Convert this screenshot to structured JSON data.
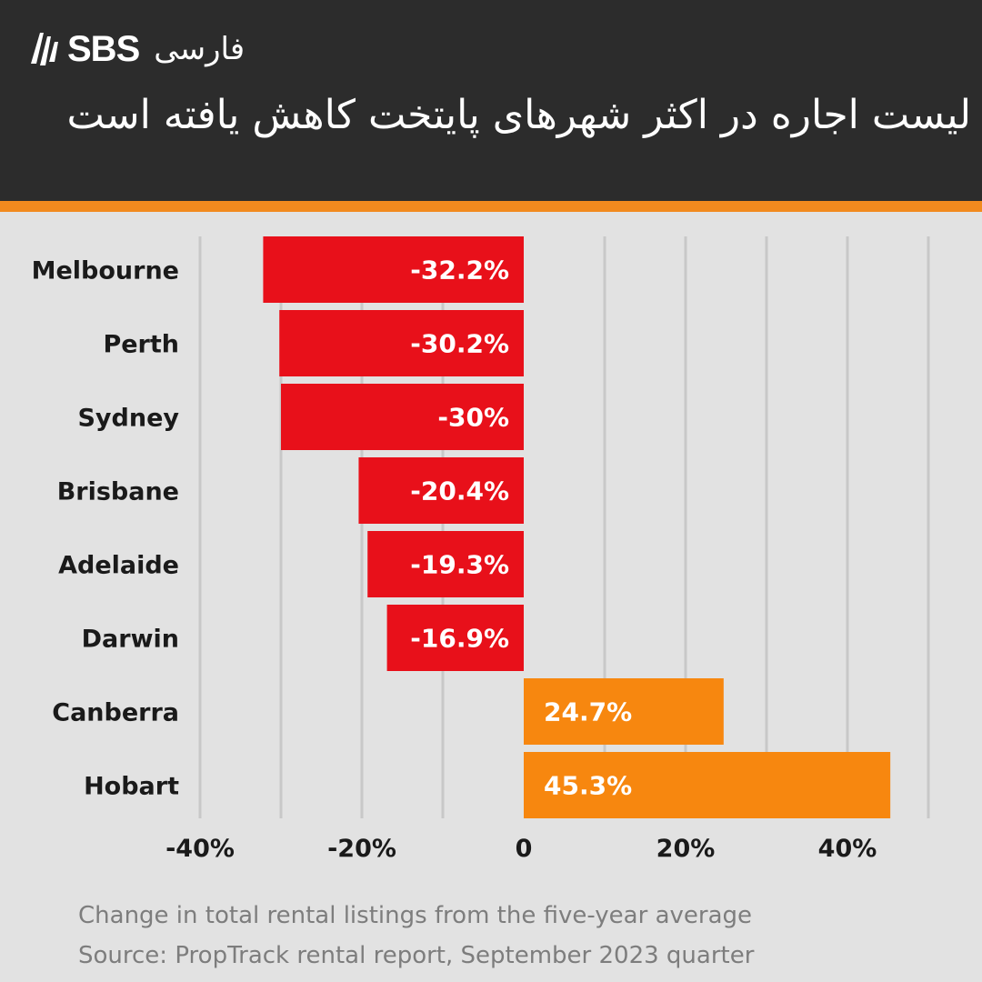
{
  "header": {
    "brand": "SBS",
    "brand_farsi": "فارسی",
    "title": "لیست اجاره در اکثر شهرهای پایتخت کاهش یافته است"
  },
  "colors": {
    "header_bg": "#2c2c2c",
    "accent": "#f28a1e",
    "negative": "#e8101a",
    "positive": "#f7870f",
    "background": "#e2e2e2"
  },
  "chart_data": {
    "type": "bar",
    "orientation": "horizontal",
    "categories": [
      "Melbourne",
      "Perth",
      "Sydney",
      "Brisbane",
      "Adelaide",
      "Darwin",
      "Canberra",
      "Hobart"
    ],
    "values": [
      -32.2,
      -30.2,
      -30,
      -20.4,
      -19.3,
      -16.9,
      24.7,
      45.3
    ],
    "data_labels": [
      "-32.2%",
      "-30.2%",
      "-30%",
      "-20.4%",
      "-19.3%",
      "-16.9%",
      "24.7%",
      "45.3%"
    ],
    "xlim": [
      -40,
      50
    ],
    "xticks": [
      -40,
      -20,
      0,
      20,
      40
    ],
    "xtick_labels": [
      "-40%",
      "-20%",
      "0",
      "20%",
      "40%"
    ],
    "grid": true,
    "subtitle": "Change in total rental listings from the five-year average",
    "source": "Source: PropTrack rental report, September 2023 quarter"
  }
}
